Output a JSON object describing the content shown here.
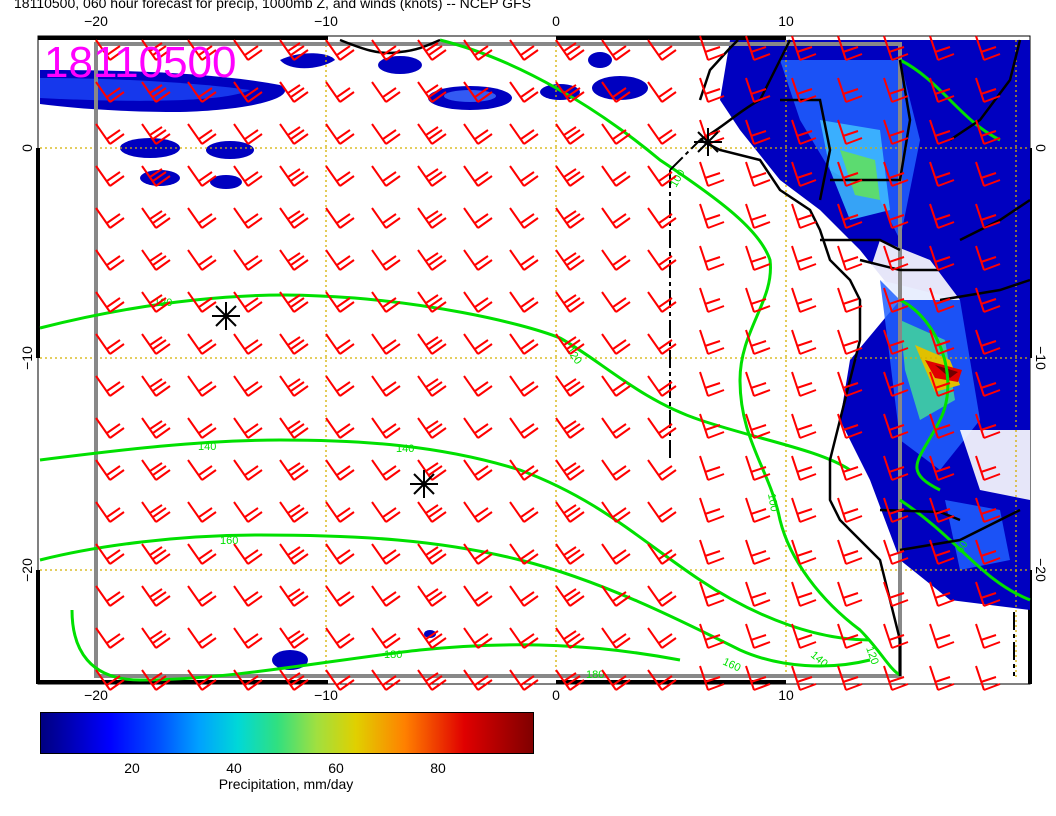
{
  "title": "18110500, 060 hour forecast for precip, 1000mb Z, and winds (knots) -- NCEP GFS",
  "run_stamp": "18110500",
  "map": {
    "lon_ticks_top": [
      "−20",
      "−10",
      "0",
      "10"
    ],
    "lon_ticks_bottom": [
      "−20",
      "−10",
      "0",
      "10"
    ],
    "lat_ticks_left": [
      "0",
      "−10",
      "−20"
    ],
    "lat_ticks_right": [
      "0",
      "−10",
      "−20"
    ],
    "contour_labels": [
      "100",
      "120",
      "120",
      "140",
      "140",
      "160",
      "180",
      "180",
      "160",
      "140",
      "120",
      "100",
      "60"
    ],
    "colors": {
      "contour": "#00e000",
      "wind_barb": "#ff0000",
      "coastline": "#000000",
      "gridline": "#d4b000",
      "stamp": "#ff00ff"
    }
  },
  "colorbar": {
    "ticks": [
      "20",
      "40",
      "60",
      "80"
    ],
    "label": "Precipitation, mm/day"
  }
}
